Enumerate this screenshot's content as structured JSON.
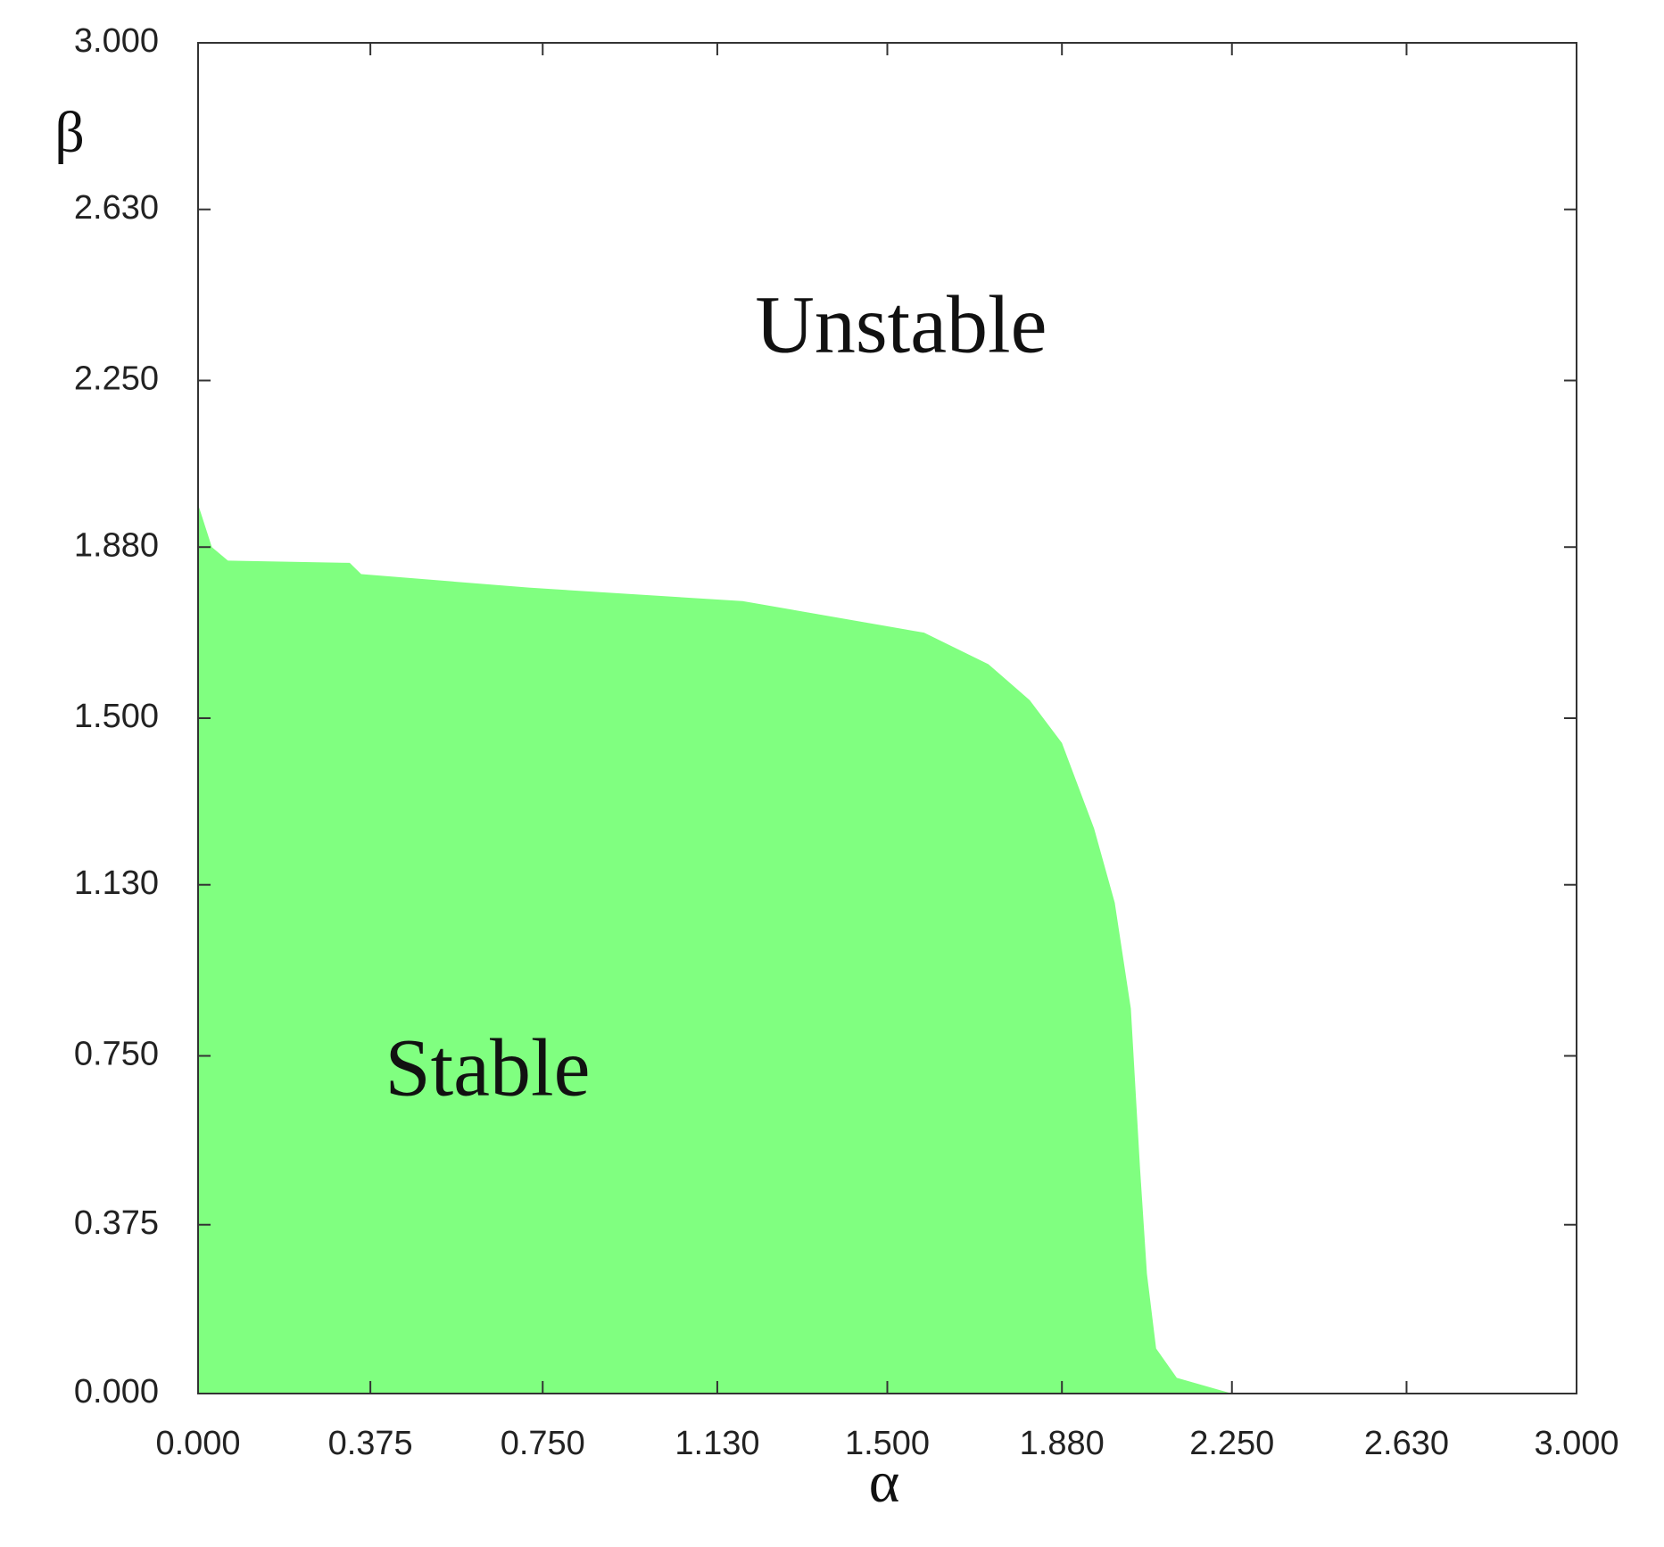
{
  "chart_data": {
    "type": "area",
    "x_label": "α",
    "y_label": "β",
    "annotations": [
      "Unstable",
      "Stable"
    ],
    "color": "#80ff80",
    "x": [
      0,
      0.03,
      0.065,
      0.33,
      0.355,
      0.72,
      1.185,
      1.58,
      1.72,
      1.81,
      1.88,
      1.95,
      1.995,
      2.03,
      2.05,
      2.065,
      2.085,
      2.13,
      2.25
    ],
    "values": [
      1.975,
      1.88,
      1.85,
      1.845,
      1.82,
      1.79,
      1.76,
      1.69,
      1.62,
      1.54,
      1.445,
      1.255,
      1.09,
      0.855,
      0.5,
      0.266,
      0.1,
      0.035,
      0
    ],
    "xlim": [
      0,
      3
    ],
    "ylim": [
      0,
      3
    ],
    "xticks": [
      {
        "value": 0,
        "label": "0.000"
      },
      {
        "value": 0.375,
        "label": "0.375"
      },
      {
        "value": 0.75,
        "label": "0.750"
      },
      {
        "value": 1.13,
        "label": "1.130"
      },
      {
        "value": 1.5,
        "label": "1.500"
      },
      {
        "value": 1.88,
        "label": "1.880"
      },
      {
        "value": 2.25,
        "label": "2.250"
      },
      {
        "value": 2.63,
        "label": "2.630"
      },
      {
        "value": 3,
        "label": "3.000"
      }
    ],
    "yticks": [
      {
        "value": 0,
        "label": "0.000"
      },
      {
        "value": 0.375,
        "label": "0.375"
      },
      {
        "value": 0.75,
        "label": "0.750"
      },
      {
        "value": 1.13,
        "label": "1.130"
      },
      {
        "value": 1.5,
        "label": "1.500"
      },
      {
        "value": 1.88,
        "label": "1.880"
      },
      {
        "value": 2.25,
        "label": "2.250"
      },
      {
        "value": 2.63,
        "label": "2.630"
      },
      {
        "value": 3,
        "label": "3.000"
      }
    ]
  }
}
